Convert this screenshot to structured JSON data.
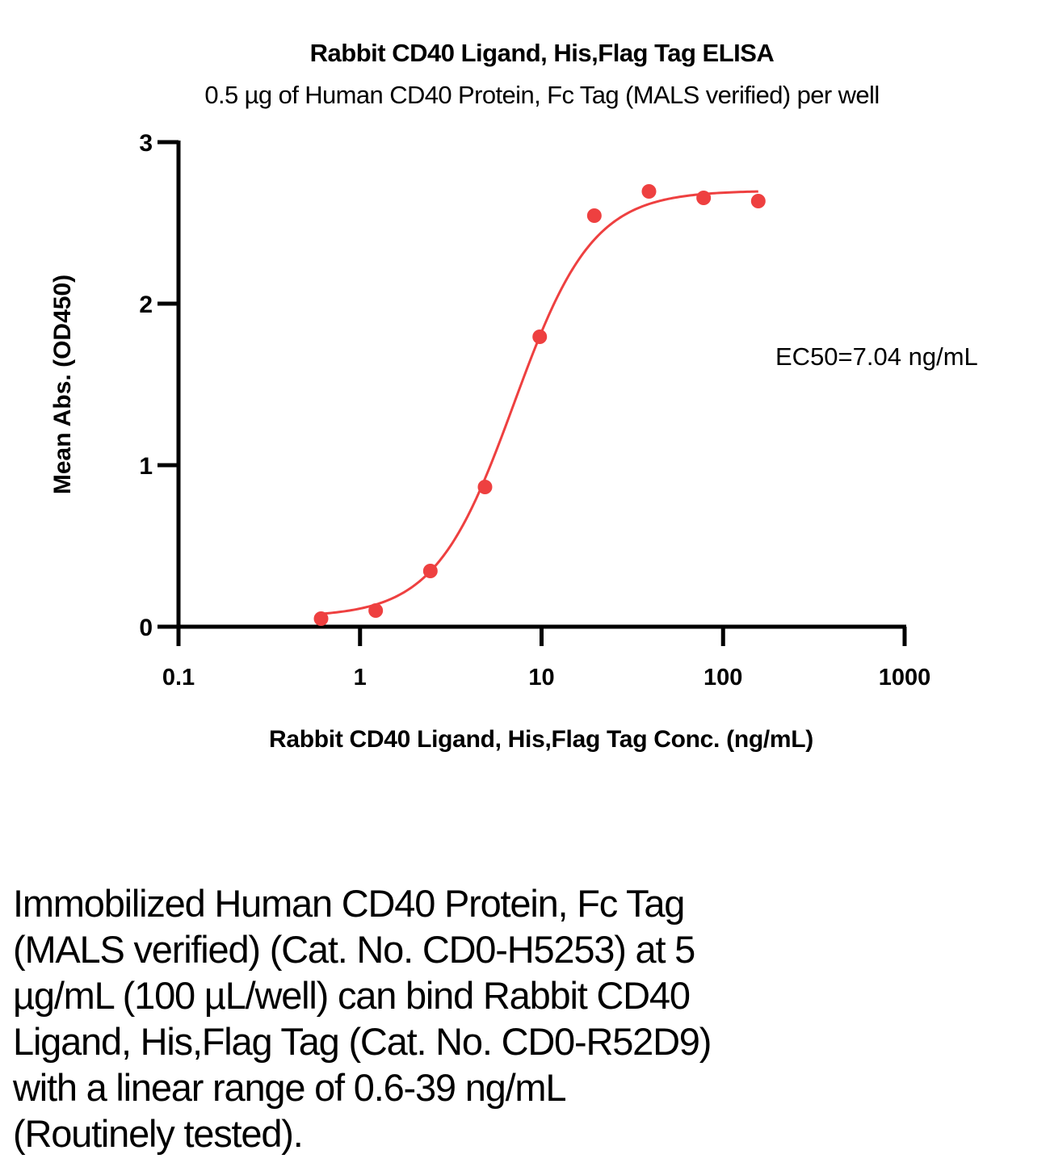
{
  "chart_data": {
    "type": "scatter",
    "title": "Rabbit CD40 Ligand, His,Flag Tag ELISA",
    "subtitle": "0.5 µg of Human CD40 Protein, Fc Tag (MALS verified) per well",
    "xlabel": "Rabbit CD40 Ligand, His,Flag Tag Conc. (ng/mL)",
    "ylabel": "Mean Abs. (OD450)",
    "xscale": "log",
    "xlim": [
      0.1,
      1000
    ],
    "ylim": [
      0,
      3
    ],
    "xticks": [
      "0.1",
      "1",
      "10",
      "100",
      "1000"
    ],
    "yticks": [
      "0",
      "1",
      "2",
      "3"
    ],
    "grid": false,
    "series": [
      {
        "name": "Rabbit CD40 Ligand, His,Flag Tag",
        "color": "#ee4040",
        "x": [
          0.61,
          1.22,
          2.44,
          4.88,
          9.77,
          19.53,
          39.06,
          78.13,
          156.25
        ],
        "y": [
          0.05,
          0.1,
          0.345,
          0.865,
          1.795,
          2.545,
          2.695,
          2.655,
          2.635
        ]
      }
    ],
    "fit": {
      "model": "4PL",
      "bottom": 0.06,
      "top": 2.7,
      "ec50": 7.04,
      "hill": 2.0,
      "x_range": [
        0.61,
        156.25
      ]
    },
    "annotation": "EC50=7.04 ng/mL"
  },
  "caption": {
    "lines": [
      "Immobilized Human CD40 Protein, Fc Tag",
      "(MALS verified) (Cat. No. CD0-H5253) at 5",
      "µg/mL (100 µL/well) can bind Rabbit CD40",
      "Ligand, His,Flag Tag (Cat. No. CD0-R52D9)",
      "with a linear range of 0.6-39 ng/mL",
      "(Routinely tested)."
    ]
  }
}
